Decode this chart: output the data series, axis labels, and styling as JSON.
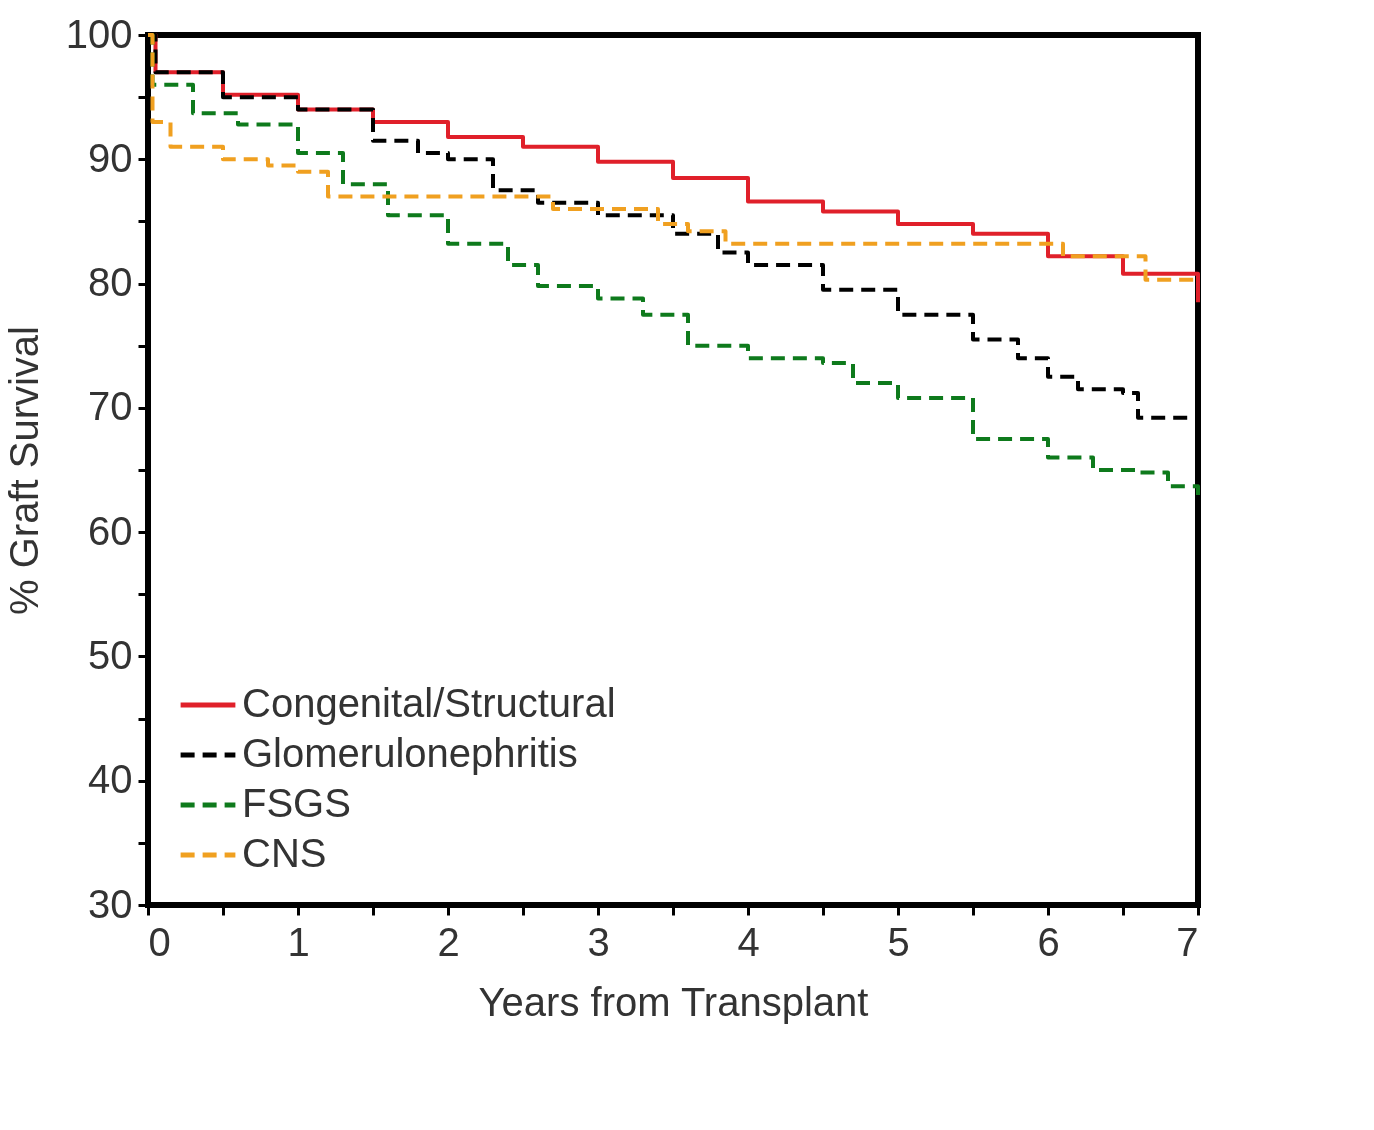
{
  "chart_data": {
    "type": "step",
    "xlabel": "Years from Transplant",
    "ylabel": "% Graft Survival",
    "xlim": [
      0,
      7
    ],
    "ylim": [
      30,
      100
    ],
    "xticks": [
      0,
      {
        "value": 0.5,
        "label": null
      },
      1,
      {
        "value": 1.5,
        "label": null
      },
      2,
      {
        "value": 2.5,
        "label": null
      },
      3,
      {
        "value": 3.5,
        "label": null
      },
      4,
      {
        "value": 4.5,
        "label": null
      },
      5,
      {
        "value": 5.5,
        "label": null
      },
      6,
      {
        "value": 6.5,
        "label": null
      },
      7
    ],
    "yticks": [
      30,
      {
        "value": 35,
        "label": null
      },
      40,
      {
        "value": 45,
        "label": null
      },
      50,
      {
        "value": 55,
        "label": null
      },
      60,
      {
        "value": 65,
        "label": null
      },
      70,
      {
        "value": 75,
        "label": null
      },
      80,
      {
        "value": 85,
        "label": null
      },
      90,
      {
        "value": 95,
        "label": null
      },
      100
    ],
    "grid": false,
    "legend": "bottom left",
    "marker": "none",
    "series": [
      {
        "name": "Congenital/Structural",
        "color": "#e0202a",
        "line_style": "solid",
        "x": [
          0,
          0.05,
          0.5,
          1,
          1.5,
          2,
          2.5,
          3,
          3.5,
          4,
          4.5,
          5,
          5.5,
          6,
          6.5,
          7
        ],
        "values": [
          100,
          97,
          95.2,
          94,
          93,
          91.8,
          91,
          89.8,
          88.5,
          86.6,
          85.8,
          84.8,
          84,
          82.2,
          80.8,
          78.5
        ]
      },
      {
        "name": "Glomerulonephritis",
        "color": "#000000",
        "line_style": "dashed",
        "x": [
          0,
          0.05,
          0.5,
          1,
          1.5,
          1.8,
          2,
          2.3,
          2.6,
          3,
          3.5,
          3.8,
          4,
          4.5,
          5,
          5.5,
          5.8,
          6,
          6.2,
          6.5,
          6.6,
          7
        ],
        "values": [
          100,
          97,
          95,
          94,
          91.5,
          90.5,
          90,
          87.5,
          86.5,
          85.5,
          84,
          82.5,
          81.5,
          79.5,
          77.5,
          75.5,
          74,
          72.5,
          71.5,
          71.2,
          69.2,
          68.5
        ]
      },
      {
        "name": "FSGS",
        "color": "#0e7a1c",
        "line_style": "dashed",
        "x": [
          0,
          0.03,
          0.3,
          0.6,
          1,
          1.3,
          1.6,
          2,
          2.4,
          2.6,
          3,
          3.3,
          3.6,
          4,
          4.5,
          4.7,
          5,
          5.5,
          6,
          6.3,
          6.6,
          6.8,
          7
        ],
        "values": [
          100,
          96,
          93.7,
          92.8,
          90.5,
          88,
          85.5,
          83.2,
          81.5,
          79.8,
          78.8,
          77.5,
          75,
          74,
          73.6,
          72,
          70.8,
          67.5,
          66,
          65,
          64.8,
          63.7,
          62.5
        ]
      },
      {
        "name": "CNS",
        "color": "#f0a020",
        "line_style": "dashed",
        "x": [
          0,
          0.03,
          0.15,
          0.5,
          0.8,
          1,
          1.2,
          2.7,
          3.4,
          3.6,
          3.85,
          6.1,
          6.65,
          7
        ],
        "values": [
          100,
          93,
          91,
          90,
          89.5,
          89,
          87,
          86,
          84.8,
          84.2,
          83.2,
          82.2,
          80.3,
          80.3
        ]
      }
    ]
  }
}
